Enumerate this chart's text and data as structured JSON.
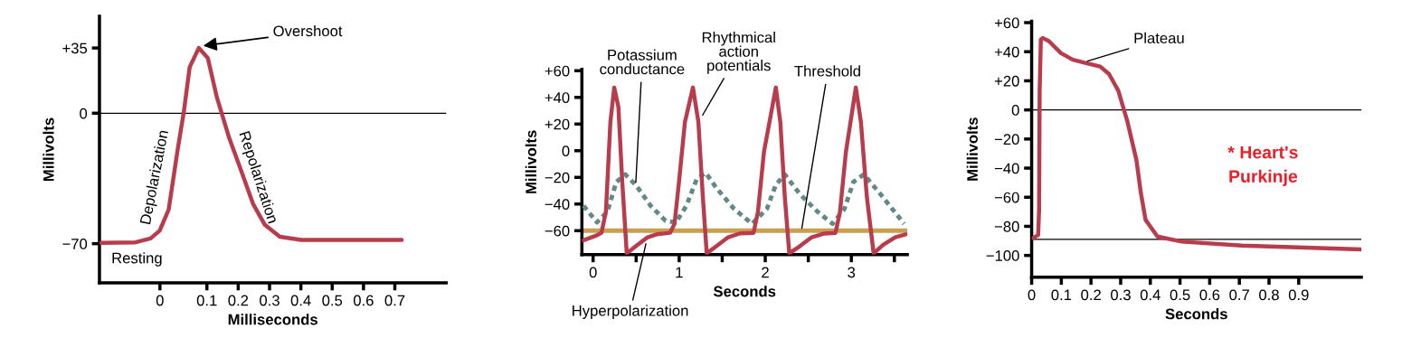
{
  "chart_data": [
    {
      "type": "line",
      "xlabel": "Milliseconds",
      "ylabel": "Millivolts",
      "xlim": [
        -0.243,
        0.864
      ],
      "ylim": [
        -91,
        52
      ],
      "xticks": [
        {
          "value": -0.05,
          "label": "0"
        },
        0.1,
        0.2,
        0.3,
        0.4,
        0.5,
        0.6,
        0.7
      ],
      "yticks": [
        {
          "value": -70,
          "label": "−70"
        },
        0,
        {
          "value": 35,
          "label": "+35"
        }
      ],
      "grid": false,
      "legend": false,
      "marker": "none",
      "line_style": "solid",
      "ref_lines": [
        {
          "axis": "y",
          "value": 0,
          "label": null,
          "color": "#000000"
        }
      ],
      "series": [
        {
          "color": "#b83c4c",
          "x": [
            -0.238,
            -0.128,
            -0.08,
            -0.051,
            -0.022,
            0.007,
            0.026,
            0.045,
            0.074,
            0.103,
            0.132,
            0.17,
            0.209,
            0.247,
            0.285,
            0.333,
            0.401,
            0.722
          ],
          "values": [
            -69.6,
            -69.3,
            -67.2,
            -63.1,
            -51.7,
            -19.2,
            0.3,
            24.7,
            35,
            29.6,
            8.4,
            -12.7,
            -30.6,
            -48.5,
            -59.9,
            -66.3,
            -68,
            -68
          ]
        }
      ],
      "annotations": [
        {
          "text": "Overshoot",
          "x": 0.08,
          "y": 36
        },
        "Depolarization",
        "Repolarization",
        "Resting"
      ]
    },
    {
      "type": "line",
      "xlabel": "Seconds",
      "ylabel": "Millivolts",
      "xlim": [
        -0.13,
        3.65
      ],
      "ylim": [
        -78,
        61
      ],
      "xticks": [
        0,
        {
          "value": 0.5,
          "label": null
        },
        1,
        {
          "value": 1.5,
          "label": null
        },
        2,
        {
          "value": 2.5,
          "label": null
        },
        3,
        {
          "value": 3.5,
          "label": null
        }
      ],
      "yticks": [
        {
          "value": -60,
          "label": "−60"
        },
        {
          "value": -40,
          "label": "−40"
        },
        {
          "value": -20,
          "label": "−20"
        },
        0,
        {
          "value": 20,
          "label": "+20"
        },
        {
          "value": 40,
          "label": "+40"
        },
        {
          "value": 60,
          "label": "+60"
        }
      ],
      "grid": false,
      "legend": false,
      "marker": "none",
      "ref_lines": [
        {
          "axis": "y",
          "value": -60,
          "label": null,
          "color": "#c9a04e"
        }
      ],
      "series": [
        {
          "color": "#5f8a88",
          "line_style": "dotted",
          "x": [
            -0.111,
            0.045,
            0.166,
            0.27,
            0.374,
            0.495,
            0.669,
            0.842,
            0.963,
            1.084,
            1.205,
            1.309,
            1.431,
            1.638,
            1.846,
            2.019,
            2.123,
            2.227,
            2.4,
            2.608,
            2.781,
            2.92,
            3.024,
            3.145,
            3.336,
            3.613
          ],
          "values": [
            -41.3,
            -53.7,
            -45.8,
            -23.4,
            -17.8,
            -25.6,
            -41.3,
            -52.6,
            -53.7,
            -41.3,
            -21.1,
            -16.6,
            -27.9,
            -43.6,
            -54.8,
            -43.6,
            -25.6,
            -17.8,
            -32.4,
            -45.8,
            -54.8,
            -43.6,
            -23.4,
            -17.8,
            -32.4,
            -54.8
          ]
        },
        {
          "color": "#b83c4c",
          "line_style": "solid",
          "x": [
            -0.111,
            0.045,
            0.097,
            0.149,
            0.201,
            0.246,
            0.294,
            0.339,
            0.391,
            0.495,
            0.634,
            0.738,
            0.894,
            0.946,
            0.998,
            1.067,
            1.16,
            1.223,
            1.275,
            1.32,
            1.431,
            1.569,
            1.708,
            1.864,
            1.915,
            1.985,
            2.123,
            2.175,
            2.227,
            2.279,
            2.4,
            2.539,
            2.678,
            2.816,
            2.868,
            2.937,
            3.052,
            3.111,
            3.18,
            3.259,
            3.37,
            3.509,
            3.63
          ],
          "values": [
            -67.2,
            -63.4,
            -61.6,
            -45.8,
            21.6,
            47.4,
            32.8,
            -23.4,
            -77,
            -71.7,
            -64.9,
            -62.7,
            -61.6,
            -54.8,
            -23.4,
            21.6,
            47.4,
            21.6,
            -34.6,
            -77,
            -71.7,
            -64.9,
            -62,
            -61.6,
            -45.8,
            -0.9,
            47.4,
            21.6,
            -34.6,
            -77,
            -71.7,
            -64.9,
            -62.2,
            -61.6,
            -45.8,
            -0.9,
            47.4,
            21.6,
            -34.6,
            -77,
            -70.6,
            -64.9,
            -62.7
          ]
        }
      ],
      "annotations": [
        {
          "text": "Potassium\nconductance",
          "x": 0.495,
          "y": -25.6
        },
        {
          "text": "Rhythmical\naction\npotentials",
          "x": 1.257,
          "y": 25
        },
        {
          "text": "Threshold",
          "x": 2.42,
          "y": -60
        },
        {
          "text": "Hyperpolarization",
          "x": 0.62,
          "y": -68
        }
      ]
    },
    {
      "type": "line",
      "xlabel": "Seconds",
      "ylabel": "Millivolts",
      "xlim": [
        0,
        1.111
      ],
      "ylim": [
        -115,
        61
      ],
      "xticks": [
        0,
        0.1,
        0.2,
        0.3,
        0.4,
        0.5,
        0.6,
        0.7,
        0.8,
        0.9
      ],
      "yticks": [
        {
          "value": -100,
          "label": "−100"
        },
        {
          "value": -80,
          "label": "−80"
        },
        {
          "value": -60,
          "label": "−60"
        },
        {
          "value": -40,
          "label": "−40"
        },
        {
          "value": -20,
          "label": "−20"
        },
        0,
        {
          "value": 20,
          "label": "+20"
        },
        {
          "value": 40,
          "label": "+40"
        },
        {
          "value": 60,
          "label": "+60"
        }
      ],
      "grid": false,
      "legend": false,
      "marker": "none",
      "line_style": "solid",
      "ref_lines": [
        {
          "axis": "y",
          "value": 0,
          "label": null,
          "color": "#000000"
        },
        {
          "axis": "y",
          "value": -89,
          "label": null,
          "color": "#000000"
        }
      ],
      "series": [
        {
          "color": "#b83c4c",
          "x": [
            0.005,
            0.022,
            0.025,
            0.027,
            0.031,
            0.038,
            0.058,
            0.099,
            0.139,
            0.19,
            0.231,
            0.261,
            0.292,
            0.322,
            0.353,
            0.368,
            0.384,
            0.424,
            0.506,
            0.709,
            1.111
          ],
          "values": [
            -88,
            -86,
            -69.4,
            13.2,
            48.3,
            49.4,
            47.3,
            39,
            34.5,
            31.8,
            29.8,
            24.6,
            13.2,
            -7.4,
            -34.3,
            -57,
            -75.6,
            -87,
            -90.5,
            -93.2,
            -95.9
          ]
        }
      ],
      "annotations": [
        {
          "text": "Plateau",
          "x": 0.18,
          "y": 33
        },
        "* Heart's\nPurkinje"
      ]
    }
  ]
}
